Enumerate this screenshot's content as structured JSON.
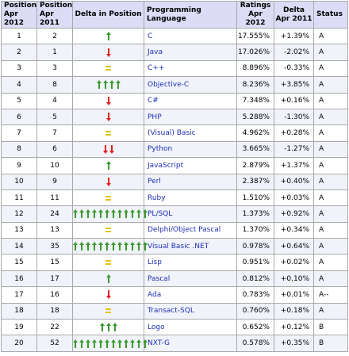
{
  "headers": {
    "position_2012": [
      "Position",
      "Apr 2012"
    ],
    "position_2011": [
      "Position",
      "Apr 2011"
    ],
    "delta_position": "Delta in Position",
    "language": "Programming Language",
    "ratings": [
      "Ratings",
      "Apr 2012"
    ],
    "delta_ratings": [
      "Delta",
      "Apr 2011"
    ],
    "status": "Status"
  },
  "colors": {
    "up": "#3a9b2f",
    "down": "#e01f1f",
    "same": "#e0c516",
    "header_bg": "#dcdcf7",
    "link": "#1f2fb5"
  },
  "rows": [
    {
      "pos2012": "1",
      "pos2011": "2",
      "delta": {
        "dir": "up",
        "count": 1
      },
      "lang": "C",
      "rating": "17.555%",
      "change": "+1.39%",
      "status": "A"
    },
    {
      "pos2012": "2",
      "pos2011": "1",
      "delta": {
        "dir": "down",
        "count": 1
      },
      "lang": "Java",
      "rating": "17.026%",
      "change": "-2.02%",
      "status": "A"
    },
    {
      "pos2012": "3",
      "pos2011": "3",
      "delta": {
        "dir": "same",
        "count": 1
      },
      "lang": "C++",
      "rating": "8.896%",
      "change": "-0.33%",
      "status": "A"
    },
    {
      "pos2012": "4",
      "pos2011": "8",
      "delta": {
        "dir": "up",
        "count": 4
      },
      "lang": "Objective-C",
      "rating": "8.236%",
      "change": "+3.85%",
      "status": "A"
    },
    {
      "pos2012": "5",
      "pos2011": "4",
      "delta": {
        "dir": "down",
        "count": 1
      },
      "lang": "C#",
      "rating": "7.348%",
      "change": "+0.16%",
      "status": "A"
    },
    {
      "pos2012": "6",
      "pos2011": "5",
      "delta": {
        "dir": "down",
        "count": 1
      },
      "lang": "PHP",
      "rating": "5.288%",
      "change": "-1.30%",
      "status": "A"
    },
    {
      "pos2012": "7",
      "pos2011": "7",
      "delta": {
        "dir": "same",
        "count": 1
      },
      "lang": "(Visual) Basic",
      "rating": "4.962%",
      "change": "+0.28%",
      "status": "A"
    },
    {
      "pos2012": "8",
      "pos2011": "6",
      "delta": {
        "dir": "down",
        "count": 2
      },
      "lang": "Python",
      "rating": "3.665%",
      "change": "-1.27%",
      "status": "A"
    },
    {
      "pos2012": "9",
      "pos2011": "10",
      "delta": {
        "dir": "up",
        "count": 1
      },
      "lang": "JavaScript",
      "rating": "2.879%",
      "change": "+1.37%",
      "status": "A"
    },
    {
      "pos2012": "10",
      "pos2011": "9",
      "delta": {
        "dir": "down",
        "count": 1
      },
      "lang": "Perl",
      "rating": "2.387%",
      "change": "+0.40%",
      "status": "A"
    },
    {
      "pos2012": "11",
      "pos2011": "11",
      "delta": {
        "dir": "same",
        "count": 1
      },
      "lang": "Ruby",
      "rating": "1.510%",
      "change": "+0.03%",
      "status": "A"
    },
    {
      "pos2012": "12",
      "pos2011": "24",
      "delta": {
        "dir": "up",
        "count": 12
      },
      "lang": "PL/SQL",
      "rating": "1.373%",
      "change": "+0.92%",
      "status": "A"
    },
    {
      "pos2012": "13",
      "pos2011": "13",
      "delta": {
        "dir": "same",
        "count": 1
      },
      "lang": "Delphi/Object Pascal",
      "rating": "1.370%",
      "change": "+0.34%",
      "status": "A"
    },
    {
      "pos2012": "14",
      "pos2011": "35",
      "delta": {
        "dir": "up",
        "count": 12
      },
      "lang": "Visual Basic .NET",
      "rating": "0.978%",
      "change": "+0.64%",
      "status": "A"
    },
    {
      "pos2012": "15",
      "pos2011": "15",
      "delta": {
        "dir": "same",
        "count": 1
      },
      "lang": "Lisp",
      "rating": "0.951%",
      "change": "+0.02%",
      "status": "A"
    },
    {
      "pos2012": "16",
      "pos2011": "17",
      "delta": {
        "dir": "up",
        "count": 1
      },
      "lang": "Pascal",
      "rating": "0.812%",
      "change": "+0.10%",
      "status": "A"
    },
    {
      "pos2012": "17",
      "pos2011": "16",
      "delta": {
        "dir": "down",
        "count": 1
      },
      "lang": "Ada",
      "rating": "0.783%",
      "change": "+0.01%",
      "status": "A--"
    },
    {
      "pos2012": "18",
      "pos2011": "18",
      "delta": {
        "dir": "same",
        "count": 1
      },
      "lang": "Transact-SQL",
      "rating": "0.760%",
      "change": "+0.18%",
      "status": "A"
    },
    {
      "pos2012": "19",
      "pos2011": "22",
      "delta": {
        "dir": "up",
        "count": 3
      },
      "lang": "Logo",
      "rating": "0.652%",
      "change": "+0.12%",
      "status": "B"
    },
    {
      "pos2012": "20",
      "pos2011": "52",
      "delta": {
        "dir": "up",
        "count": 12
      },
      "lang": "NXT-G",
      "rating": "0.578%",
      "change": "+0.35%",
      "status": "B"
    }
  ]
}
